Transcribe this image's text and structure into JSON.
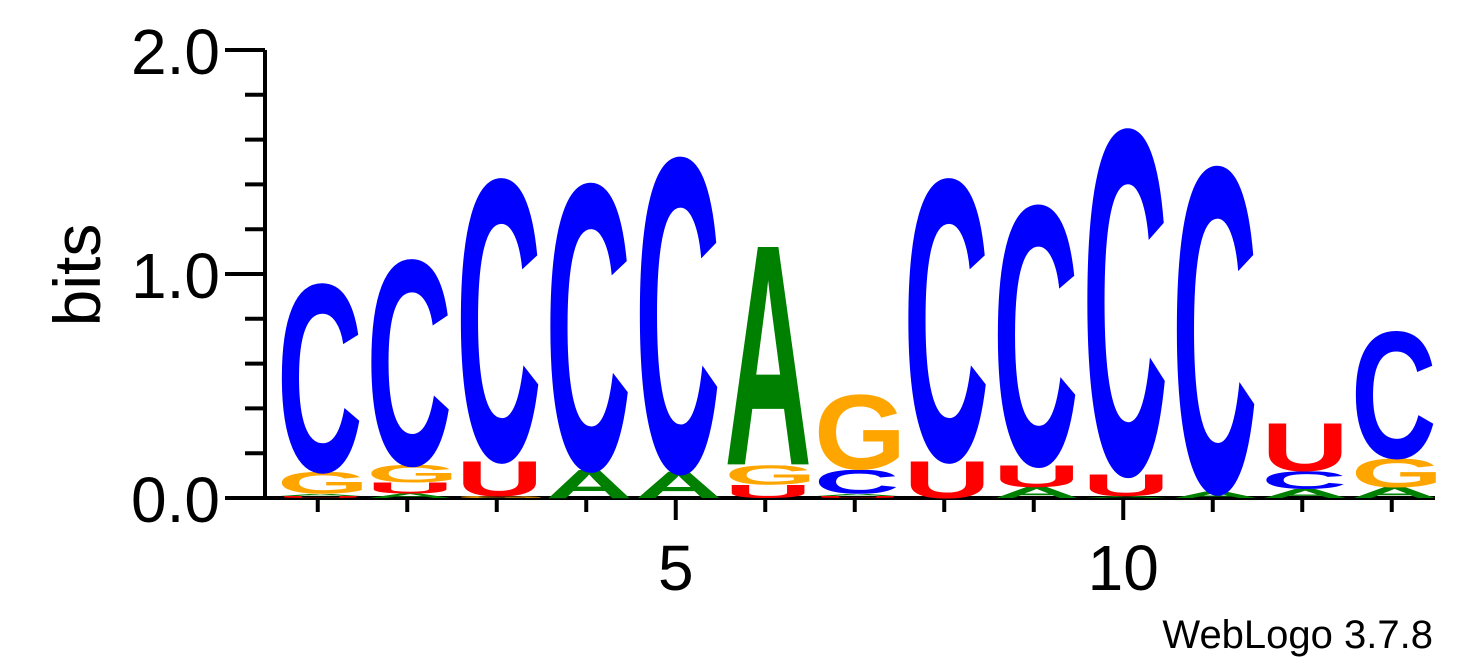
{
  "chart_data": {
    "type": "sequence-logo",
    "ylabel": "bits",
    "ylim": [
      0,
      2.0
    ],
    "y_ticks": [
      {
        "value": 0.0,
        "label": "0.0"
      },
      {
        "value": 1.0,
        "label": "1.0"
      },
      {
        "value": 2.0,
        "label": "2.0"
      }
    ],
    "y_minor_step": 0.2,
    "x_ticks": [
      {
        "position": 5,
        "label": "5"
      },
      {
        "position": 10,
        "label": "10"
      }
    ],
    "num_positions": 13,
    "colors": {
      "A": "#008000",
      "C": "#0000ff",
      "G": "#ffa500",
      "U": "#ff0000"
    },
    "positions": [
      {
        "position": 1,
        "stack": [
          {
            "letter": "U",
            "height": 0.01
          },
          {
            "letter": "A",
            "height": 0.01
          },
          {
            "letter": "G",
            "height": 0.1
          },
          {
            "letter": "C",
            "height": 0.86
          }
        ]
      },
      {
        "position": 2,
        "stack": [
          {
            "letter": "A",
            "height": 0.02
          },
          {
            "letter": "U",
            "height": 0.05
          },
          {
            "letter": "G",
            "height": 0.08
          },
          {
            "letter": "C",
            "height": 0.94
          }
        ]
      },
      {
        "position": 3,
        "stack": [
          {
            "letter": "G",
            "height": 0.01
          },
          {
            "letter": "U",
            "height": 0.16
          },
          {
            "letter": "C",
            "height": 1.29
          }
        ]
      },
      {
        "position": 4,
        "stack": [
          {
            "letter": "A",
            "height": 0.13
          },
          {
            "letter": "C",
            "height": 1.31
          }
        ]
      },
      {
        "position": 5,
        "stack": [
          {
            "letter": "A",
            "height": 0.12
          },
          {
            "letter": "C",
            "height": 1.44
          }
        ]
      },
      {
        "position": 6,
        "stack": [
          {
            "letter": "U",
            "height": 0.06
          },
          {
            "letter": "G",
            "height": 0.09
          },
          {
            "letter": "A",
            "height": 1.01
          }
        ]
      },
      {
        "position": 7,
        "stack": [
          {
            "letter": "U",
            "height": 0.01
          },
          {
            "letter": "A",
            "height": 0.01
          },
          {
            "letter": "C",
            "height": 0.11
          },
          {
            "letter": "G",
            "height": 0.34
          }
        ]
      },
      {
        "position": 8,
        "stack": [
          {
            "letter": "U",
            "height": 0.17
          },
          {
            "letter": "C",
            "height": 1.29
          }
        ]
      },
      {
        "position": 9,
        "stack": [
          {
            "letter": "A",
            "height": 0.05
          },
          {
            "letter": "U",
            "height": 0.1
          },
          {
            "letter": "C",
            "height": 1.19
          }
        ]
      },
      {
        "position": 10,
        "stack": [
          {
            "letter": "A",
            "height": 0.01
          },
          {
            "letter": "U",
            "height": 0.1
          },
          {
            "letter": "C",
            "height": 1.58
          }
        ]
      },
      {
        "position": 11,
        "stack": [
          {
            "letter": "A",
            "height": 0.03
          },
          {
            "letter": "C",
            "height": 1.49
          }
        ]
      },
      {
        "position": 12,
        "stack": [
          {
            "letter": "A",
            "height": 0.04
          },
          {
            "letter": "C",
            "height": 0.08
          },
          {
            "letter": "U",
            "height": 0.22
          }
        ]
      },
      {
        "position": 13,
        "stack": [
          {
            "letter": "A",
            "height": 0.05
          },
          {
            "letter": "G",
            "height": 0.13
          },
          {
            "letter": "C",
            "height": 0.58
          }
        ]
      }
    ]
  },
  "footer": {
    "credit": "WebLogo 3.7.8"
  }
}
